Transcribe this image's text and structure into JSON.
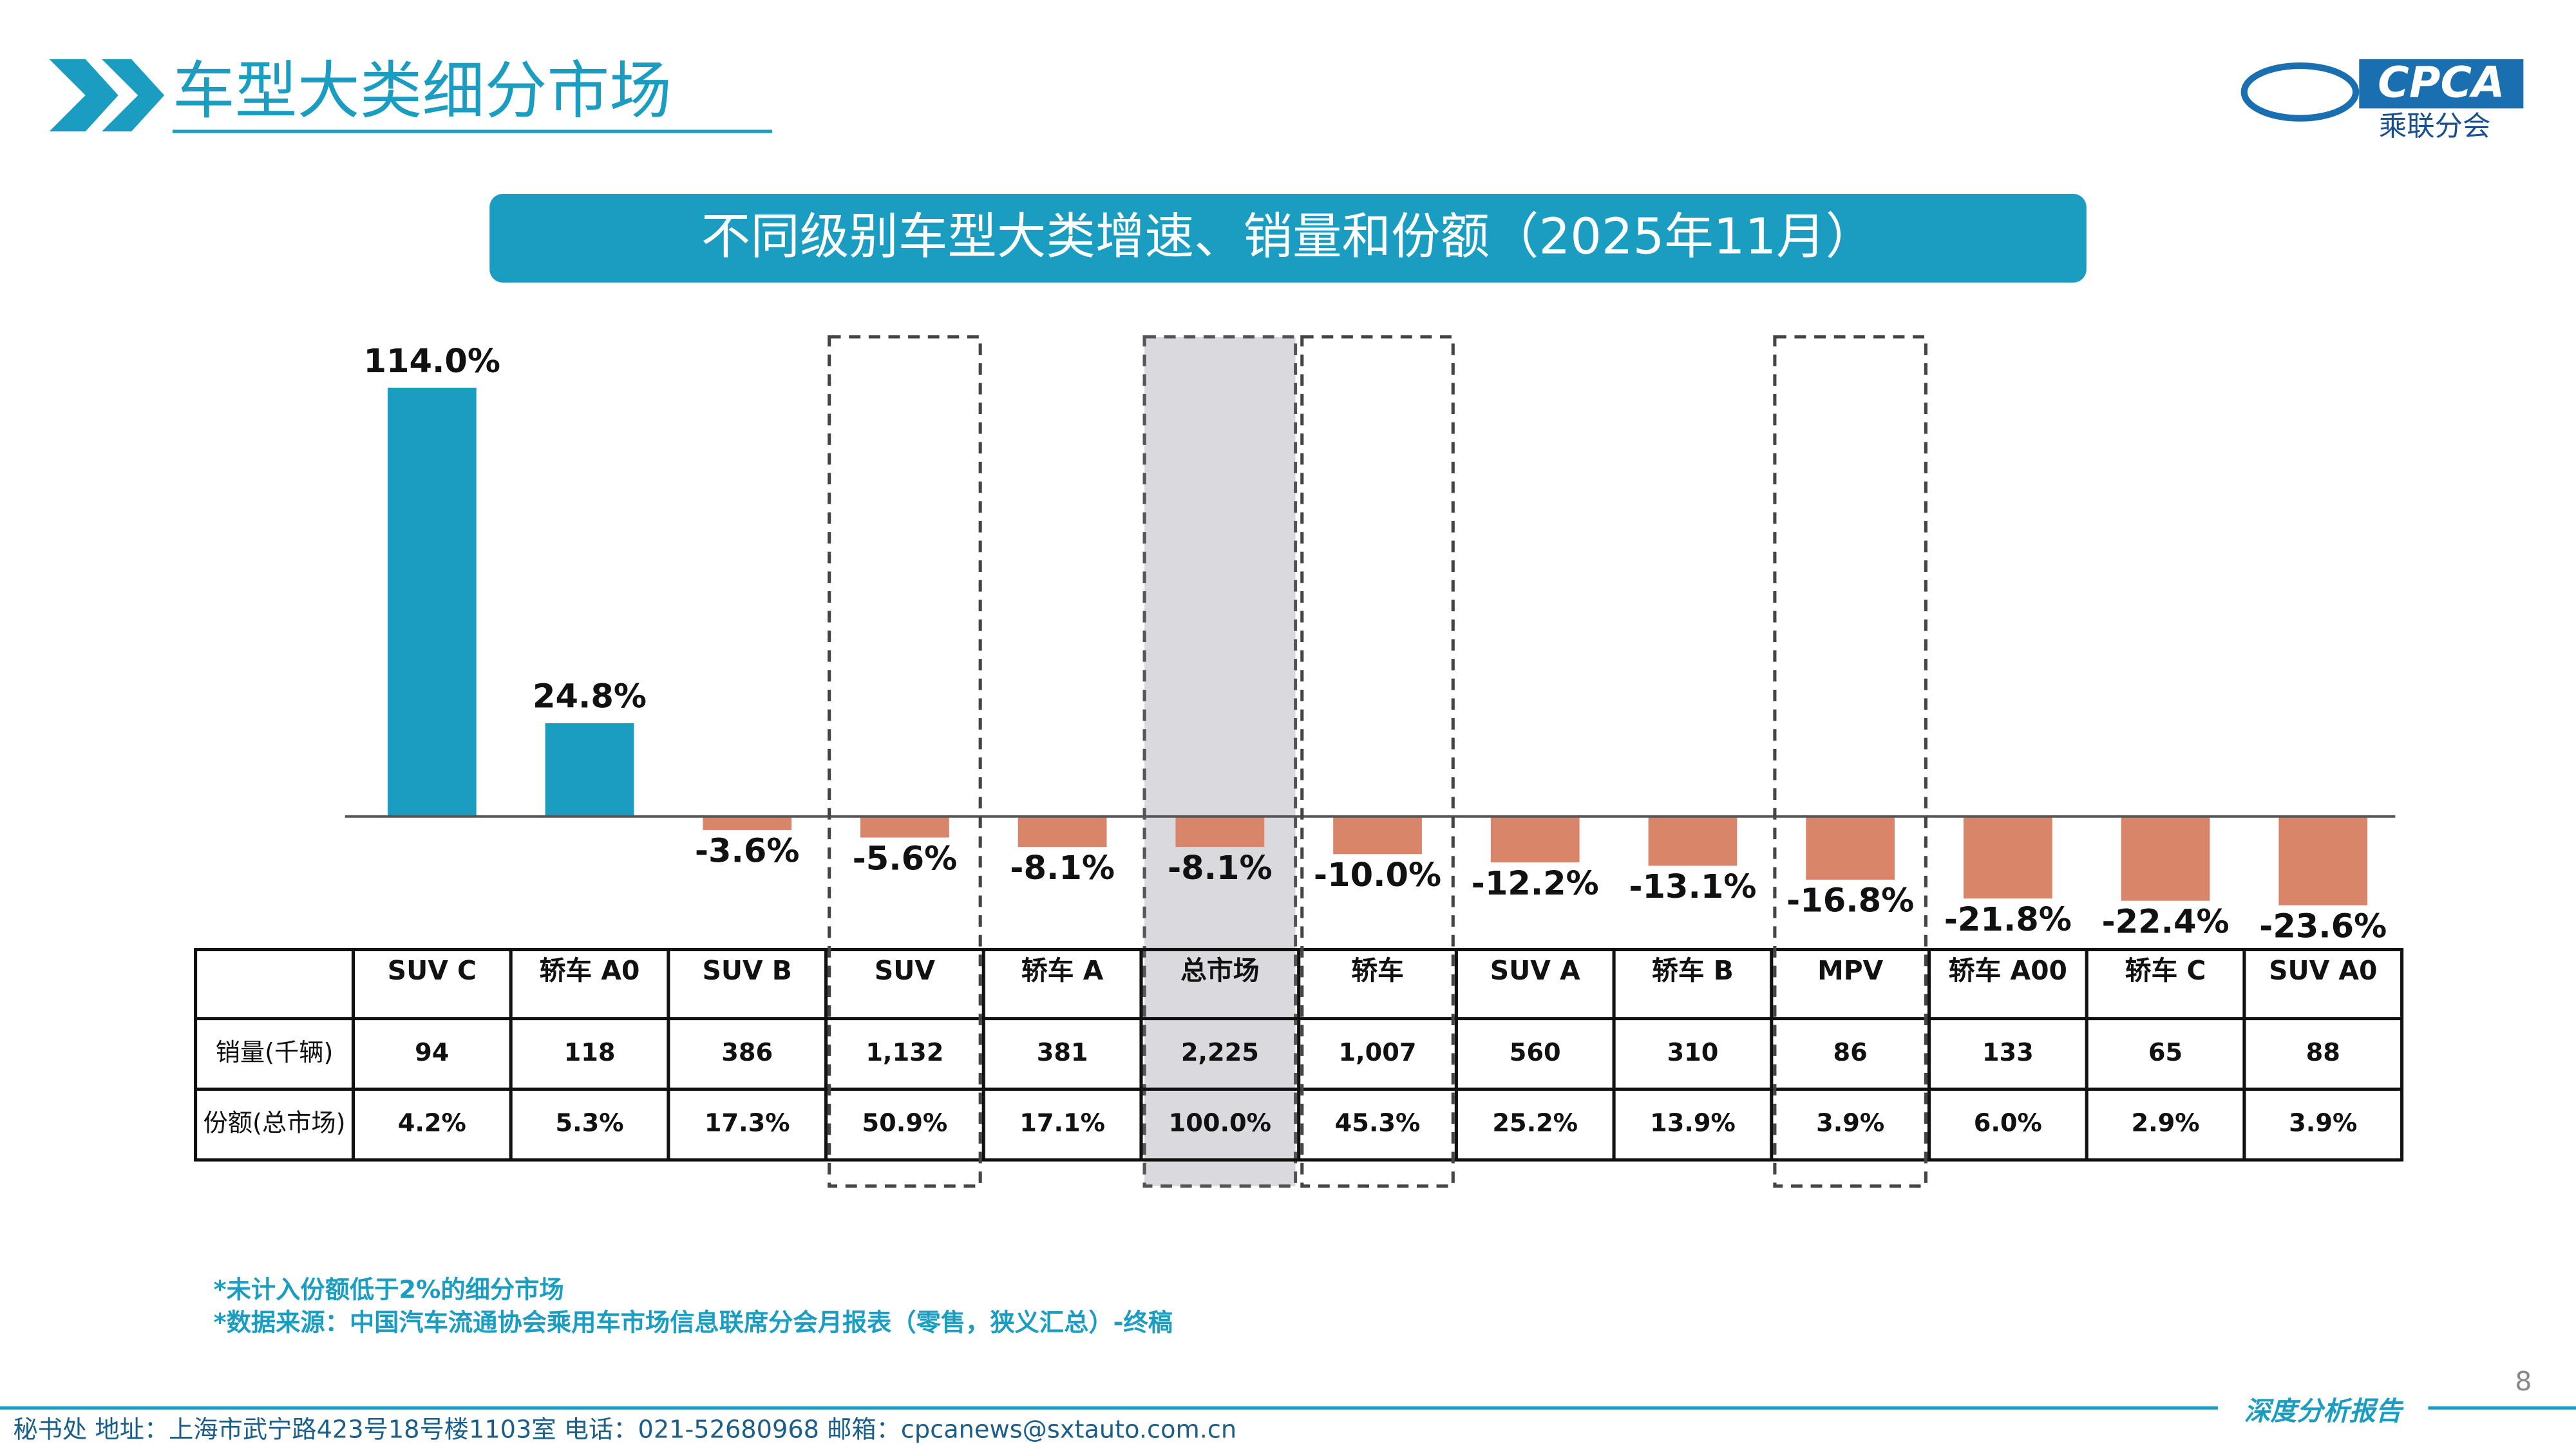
{
  "header": {
    "title": "车型大类细分市场",
    "banner": "不同级别车型大类增速、销量和份额（2025年11月）",
    "logo": {
      "abbr": "CPCA",
      "name": "乘联分会"
    }
  },
  "chart_data": {
    "type": "bar",
    "categories": [
      "SUV C",
      "轿车 A0",
      "SUV B",
      "SUV",
      "轿车 A",
      "总市场",
      "轿车",
      "SUV A",
      "轿车 B",
      "MPV",
      "轿车 A00",
      "轿车 C",
      "SUV A0"
    ],
    "values": [
      114.0,
      24.8,
      -3.6,
      -5.6,
      -8.1,
      -8.1,
      -10.0,
      -12.2,
      -13.1,
      -16.8,
      -21.8,
      -22.4,
      -23.6
    ],
    "value_labels": [
      "114.0%",
      "24.8%",
      "-3.6%",
      "-5.6%",
      "-8.1%",
      "-8.1%",
      "-10.0%",
      "-12.2%",
      "-13.1%",
      "-16.8%",
      "-21.8%",
      "-22.4%",
      "-23.6%"
    ],
    "positive_color": "#1a9dc0",
    "negative_color": "#d9856a"
  },
  "table": {
    "row_labels": [
      "销量(千辆)",
      "份额(总市场)"
    ],
    "rows": [
      [
        "94",
        "118",
        "386",
        "1,132",
        "381",
        "2,225",
        "1,007",
        "560",
        "310",
        "86",
        "133",
        "65",
        "88"
      ],
      [
        "4.2%",
        "5.3%",
        "17.3%",
        "50.9%",
        "17.1%",
        "100.0%",
        "45.3%",
        "25.2%",
        "13.9%",
        "3.9%",
        "6.0%",
        "2.9%",
        "3.9%"
      ]
    ]
  },
  "footnotes": [
    "*未计入份额低于2%的细分市场",
    "*数据来源：中国汽车流通协会乘用车市场信息联席分会月报表（零售，狭义汇总）-终稿"
  ],
  "page_number": "8",
  "footer": {
    "address": "秘书处   地址：上海市武宁路423号18号楼1103室   电话：021-52680968   邮箱：cpcanews@sxtauto.com.cn",
    "tag": "深度分析报告"
  }
}
